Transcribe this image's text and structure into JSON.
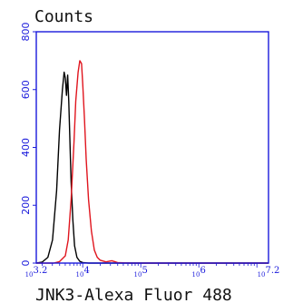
{
  "chart_data": {
    "type": "line",
    "title": "",
    "xlabel": "JNK3-Alexa Fluor 488",
    "ylabel": "Counts",
    "xscale": "log",
    "xlim": [
      3.2,
      7.2
    ],
    "ylim": [
      0,
      800
    ],
    "x_tick_labels": [
      "10^3.2",
      "10^4",
      "10^5",
      "10^6",
      "10^7.2"
    ],
    "x_tick_values": [
      3.2,
      4,
      5,
      6,
      7.2
    ],
    "y_tick_values": [
      0,
      200,
      400,
      600,
      800
    ],
    "grid": false,
    "colors": {
      "axes": "#1a1adb",
      "series_control": "#000000",
      "series_sample": "#e0151e"
    },
    "series": [
      {
        "color": "#000000",
        "x": [
          3.2,
          3.3,
          3.4,
          3.48,
          3.55,
          3.6,
          3.65,
          3.68,
          3.7,
          3.72,
          3.74,
          3.76,
          3.78,
          3.8,
          3.83,
          3.86,
          3.9,
          3.95,
          4.0,
          4.1,
          4.3,
          5.0,
          6.0,
          7.2
        ],
        "y": [
          0,
          3,
          20,
          80,
          250,
          460,
          600,
          660,
          640,
          580,
          650,
          560,
          420,
          280,
          150,
          60,
          20,
          6,
          2,
          0,
          0,
          0,
          0,
          0
        ]
      },
      {
        "color": "#e0151e",
        "x": [
          3.2,
          3.5,
          3.6,
          3.7,
          3.75,
          3.8,
          3.85,
          3.88,
          3.92,
          3.95,
          3.98,
          4.0,
          4.03,
          4.06,
          4.1,
          4.15,
          4.2,
          4.25,
          4.3,
          4.4,
          4.5,
          4.6,
          4.8,
          5.2,
          6.0,
          7.2
        ],
        "y": [
          0,
          0,
          5,
          25,
          80,
          220,
          420,
          560,
          660,
          700,
          690,
          620,
          500,
          360,
          220,
          110,
          45,
          20,
          10,
          4,
          8,
          2,
          0,
          0,
          0,
          0
        ]
      }
    ]
  }
}
